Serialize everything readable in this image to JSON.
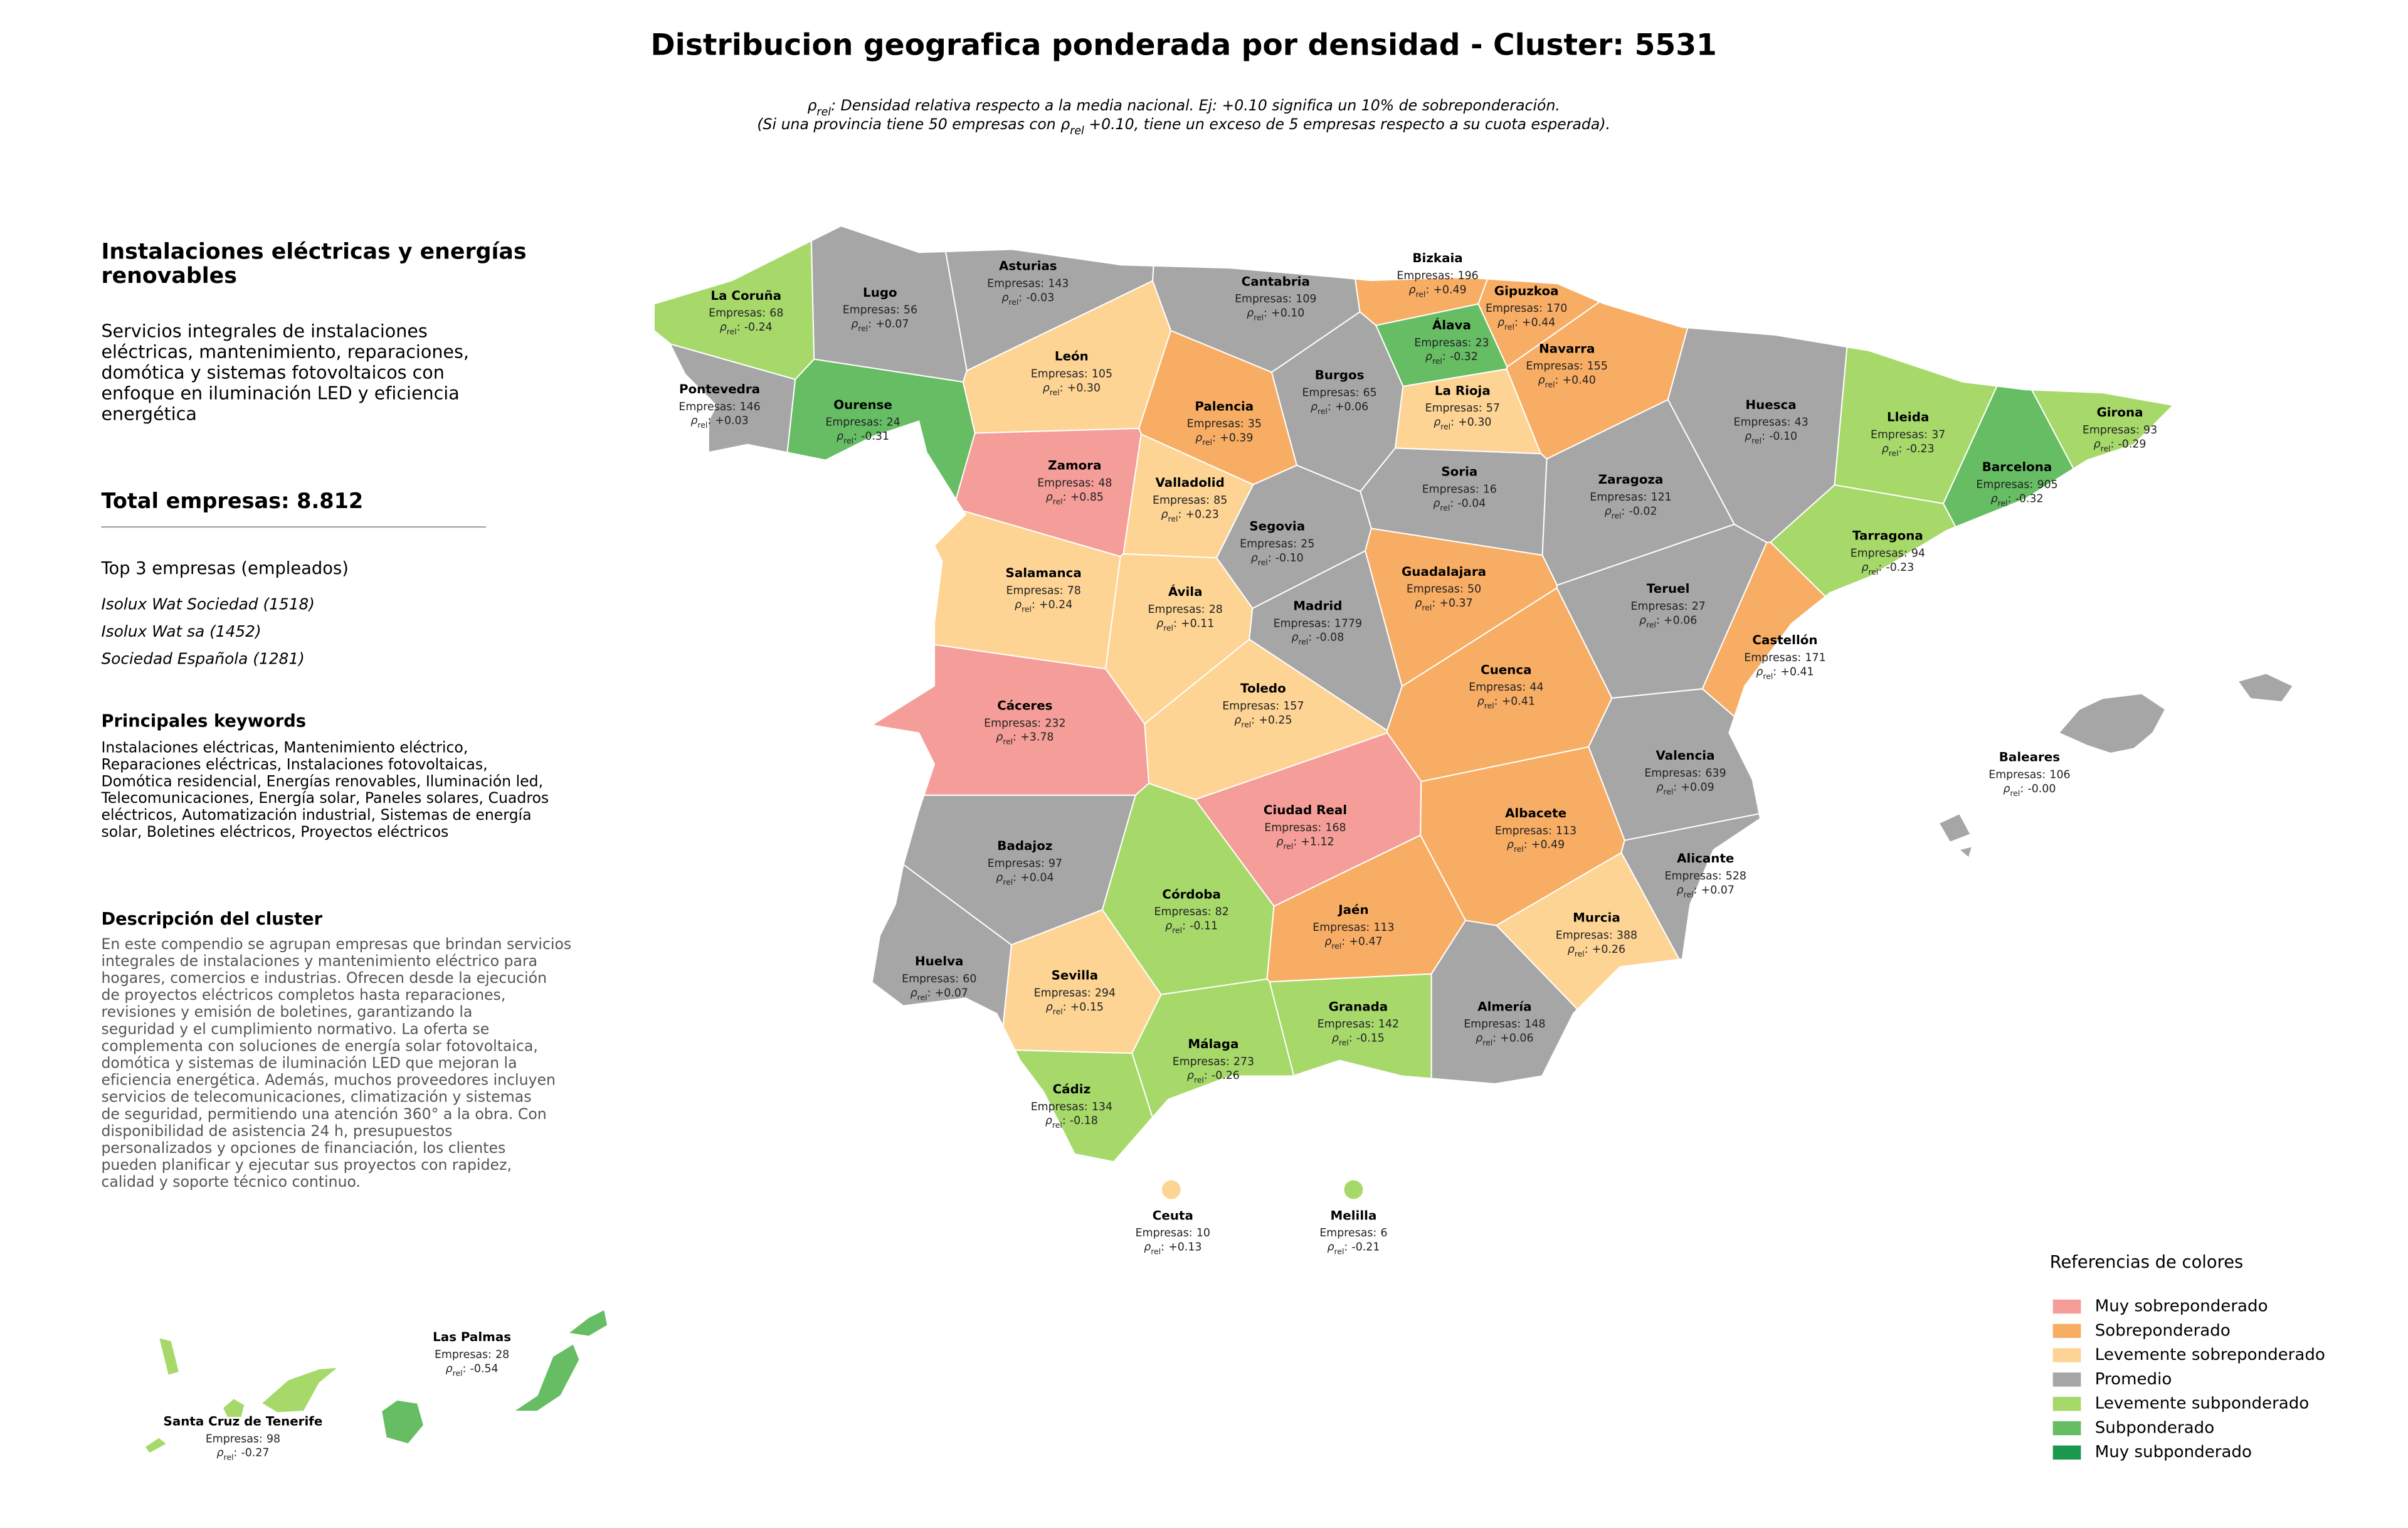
{
  "title": "Distribucion geografica ponderada por densidad - Cluster: 5531",
  "subtitle": [
    [
      {
        "text": "ρ"
      },
      {
        "text": "rel",
        "sub": true
      },
      {
        "text": ": Densidad relativa respecto a la media nacional. Ej: +0.10 significa un 10% de sobreponderación."
      }
    ],
    [
      {
        "text": "(Si una provincia tiene 50 empresas con "
      },
      {
        "text": "ρ"
      },
      {
        "text": "rel",
        "sub": true
      },
      {
        "text": " +0.10, tiene un exceso de 5 empresas respecto a su cuota esperada)."
      }
    ]
  ],
  "panel": {
    "heading": [
      "Instalaciones eléctricas y energías",
      "renovables"
    ],
    "description": [
      "Servicios integrales de instalaciones",
      "eléctricas, mantenimiento, reparaciones,",
      "domótica y sistemas fotovoltaicos con",
      "enfoque en iluminación LED y eficiencia",
      "energética"
    ],
    "total": "Total empresas: 8.812",
    "top_title": "Top 3 empresas (empleados)",
    "top": [
      "Isolux Wat Sociedad (1518)",
      "Isolux Wat sa (1452)",
      "Sociedad Española (1281)"
    ],
    "keywords_title": "Principales keywords",
    "keywords": [
      "Instalaciones eléctricas, Mantenimiento eléctrico,",
      "Reparaciones eléctricas, Instalaciones fotovoltaicas,",
      "Domótica residencial, Energías renovables, Iluminación led,",
      "Telecomunicaciones, Energía solar, Paneles solares, Cuadros",
      "eléctricos, Automatización industrial, Sistemas de energía",
      "solar, Boletines eléctricos, Proyectos eléctricos"
    ],
    "cluster_title": "Descripción del cluster",
    "cluster": [
      "En este compendio se agrupan empresas que brindan servicios",
      "integrales de instalaciones y mantenimiento eléctrico para",
      "hogares, comercios e industrias. Ofrecen desde la ejecución",
      "de proyectos eléctricos completos hasta reparaciones,",
      "revisiones y emisión de boletines, garantizando la",
      "seguridad y el cumplimiento normativo. La oferta se",
      "complementa con soluciones de energía solar fotovoltaica,",
      "domótica y sistemas de iluminación LED que mejoran la",
      "eficiencia energética. Además, muchos proveedores incluyen",
      "servicios de telecomunicaciones, climatización y sistemas",
      "de seguridad, permitiendo una atención 360° a la obra. Con",
      "disponibilidad de asistencia 24 h, presupuestos",
      "personalizados y opciones de financiación, los clientes",
      "pueden planificar y ejecutar sus proyectos con rapidez,",
      "calidad y soporte técnico continuo."
    ]
  },
  "labels": {
    "companies": "Empresas:",
    "rho_symbol": "ρ",
    "rho_subscript": "rel",
    "rho_suffix": ":"
  },
  "legend": {
    "title": "Referencias de colores",
    "items": [
      {
        "name": "Muy sobreponderado",
        "color": "#f59d98"
      },
      {
        "name": "Sobreponderado",
        "color": "#f8ad64"
      },
      {
        "name": "Levemente sobreponderado",
        "color": "#fdd494"
      },
      {
        "name": "Promedio",
        "color": "#a6a6a6"
      },
      {
        "name": "Levemente subponderado",
        "color": "#a6d96a"
      },
      {
        "name": "Subponderado",
        "color": "#66bd63"
      },
      {
        "name": "Muy subponderado",
        "color": "#1a9850"
      }
    ]
  },
  "provinces": [
    {
      "name": "La Coruña",
      "companies": 68,
      "rho": -0.24,
      "rho_label": "-0.24",
      "category": "Levemente subponderado"
    },
    {
      "name": "Lugo",
      "companies": 56,
      "rho": 0.07,
      "rho_label": "+0.07",
      "category": "Promedio"
    },
    {
      "name": "Asturias",
      "companies": 143,
      "rho": -0.03,
      "rho_label": "-0.03",
      "category": "Promedio"
    },
    {
      "name": "Cantabria",
      "companies": 109,
      "rho": 0.1,
      "rho_label": "+0.10",
      "category": "Promedio"
    },
    {
      "name": "Bizkaia",
      "companies": 196,
      "rho": 0.49,
      "rho_label": "+0.49",
      "category": "Sobreponderado"
    },
    {
      "name": "Gipuzkoa",
      "companies": 170,
      "rho": 0.44,
      "rho_label": "+0.44",
      "category": "Sobreponderado"
    },
    {
      "name": "Álava",
      "companies": 23,
      "rho": -0.32,
      "rho_label": "-0.32",
      "category": "Subponderado"
    },
    {
      "name": "Navarra",
      "companies": 155,
      "rho": 0.4,
      "rho_label": "+0.40",
      "category": "Sobreponderado"
    },
    {
      "name": "Pontevedra",
      "companies": 146,
      "rho": 0.03,
      "rho_label": "+0.03",
      "category": "Promedio"
    },
    {
      "name": "Ourense",
      "companies": 24,
      "rho": -0.31,
      "rho_label": "-0.31",
      "category": "Subponderado"
    },
    {
      "name": "León",
      "companies": 105,
      "rho": 0.3,
      "rho_label": "+0.30",
      "category": "Levemente sobreponderado"
    },
    {
      "name": "Palencia",
      "companies": 35,
      "rho": 0.39,
      "rho_label": "+0.39",
      "category": "Sobreponderado"
    },
    {
      "name": "Burgos",
      "companies": 65,
      "rho": 0.06,
      "rho_label": "+0.06",
      "category": "Promedio"
    },
    {
      "name": "La Rioja",
      "companies": 57,
      "rho": 0.3,
      "rho_label": "+0.30",
      "category": "Levemente sobreponderado"
    },
    {
      "name": "Huesca",
      "companies": 43,
      "rho": -0.1,
      "rho_label": "-0.10",
      "category": "Promedio"
    },
    {
      "name": "Lleida",
      "companies": 37,
      "rho": -0.23,
      "rho_label": "-0.23",
      "category": "Levemente subponderado"
    },
    {
      "name": "Girona",
      "companies": 93,
      "rho": -0.29,
      "rho_label": "-0.29",
      "category": "Levemente subponderado"
    },
    {
      "name": "Barcelona",
      "companies": 905,
      "rho": -0.32,
      "rho_label": "-0.32",
      "category": "Subponderado"
    },
    {
      "name": "Zamora",
      "companies": 48,
      "rho": 0.85,
      "rho_label": "+0.85",
      "category": "Muy sobreponderado"
    },
    {
      "name": "Valladolid",
      "companies": 85,
      "rho": 0.23,
      "rho_label": "+0.23",
      "category": "Levemente sobreponderado"
    },
    {
      "name": "Soria",
      "companies": 16,
      "rho": -0.04,
      "rho_label": "-0.04",
      "category": "Promedio"
    },
    {
      "name": "Zaragoza",
      "companies": 121,
      "rho": -0.02,
      "rho_label": "-0.02",
      "category": "Promedio"
    },
    {
      "name": "Segovia",
      "companies": 25,
      "rho": -0.1,
      "rho_label": "-0.10",
      "category": "Promedio"
    },
    {
      "name": "Tarragona",
      "companies": 94,
      "rho": -0.23,
      "rho_label": "-0.23",
      "category": "Levemente subponderado"
    },
    {
      "name": "Salamanca",
      "companies": 78,
      "rho": 0.24,
      "rho_label": "+0.24",
      "category": "Levemente sobreponderado"
    },
    {
      "name": "Guadalajara",
      "companies": 50,
      "rho": 0.37,
      "rho_label": "+0.37",
      "category": "Sobreponderado"
    },
    {
      "name": "Ávila",
      "companies": 28,
      "rho": 0.11,
      "rho_label": "+0.11",
      "category": "Levemente sobreponderado"
    },
    {
      "name": "Madrid",
      "companies": 1779,
      "rho": -0.08,
      "rho_label": "-0.08",
      "category": "Promedio"
    },
    {
      "name": "Teruel",
      "companies": 27,
      "rho": 0.06,
      "rho_label": "+0.06",
      "category": "Promedio"
    },
    {
      "name": "Castellón",
      "companies": 171,
      "rho": 0.41,
      "rho_label": "+0.41",
      "category": "Sobreponderado"
    },
    {
      "name": "Cuenca",
      "companies": 44,
      "rho": 0.41,
      "rho_label": "+0.41",
      "category": "Sobreponderado"
    },
    {
      "name": "Toledo",
      "companies": 157,
      "rho": 0.25,
      "rho_label": "+0.25",
      "category": "Levemente sobreponderado"
    },
    {
      "name": "Cáceres",
      "companies": 232,
      "rho": 3.78,
      "rho_label": "+3.78",
      "category": "Muy sobreponderado"
    },
    {
      "name": "Valencia",
      "companies": 639,
      "rho": 0.09,
      "rho_label": "+0.09",
      "category": "Promedio"
    },
    {
      "name": "Baleares",
      "companies": 106,
      "rho": 0,
      "rho_label": "-0.00",
      "category": "Promedio"
    },
    {
      "name": "Ciudad Real",
      "companies": 168,
      "rho": 1.12,
      "rho_label": "+1.12",
      "category": "Muy sobreponderado"
    },
    {
      "name": "Albacete",
      "companies": 113,
      "rho": 0.49,
      "rho_label": "+0.49",
      "category": "Sobreponderado"
    },
    {
      "name": "Badajoz",
      "companies": 97,
      "rho": 0.04,
      "rho_label": "+0.04",
      "category": "Promedio"
    },
    {
      "name": "Alicante",
      "companies": 528,
      "rho": 0.07,
      "rho_label": "+0.07",
      "category": "Promedio"
    },
    {
      "name": "Córdoba",
      "companies": 82,
      "rho": -0.11,
      "rho_label": "-0.11",
      "category": "Levemente subponderado"
    },
    {
      "name": "Jaén",
      "companies": 113,
      "rho": 0.47,
      "rho_label": "+0.47",
      "category": "Sobreponderado"
    },
    {
      "name": "Murcia",
      "companies": 388,
      "rho": 0.26,
      "rho_label": "+0.26",
      "category": "Levemente sobreponderado"
    },
    {
      "name": "Huelva",
      "companies": 60,
      "rho": 0.07,
      "rho_label": "+0.07",
      "category": "Promedio"
    },
    {
      "name": "Sevilla",
      "companies": 294,
      "rho": 0.15,
      "rho_label": "+0.15",
      "category": "Levemente sobreponderado"
    },
    {
      "name": "Granada",
      "companies": 142,
      "rho": -0.15,
      "rho_label": "-0.15",
      "category": "Levemente subponderado"
    },
    {
      "name": "Almería",
      "companies": 148,
      "rho": 0.06,
      "rho_label": "+0.06",
      "category": "Promedio"
    },
    {
      "name": "Málaga",
      "companies": 273,
      "rho": -0.26,
      "rho_label": "-0.26",
      "category": "Levemente subponderado"
    },
    {
      "name": "Cádiz",
      "companies": 134,
      "rho": -0.18,
      "rho_label": "-0.18",
      "category": "Levemente subponderado"
    },
    {
      "name": "Ceuta",
      "companies": 10,
      "rho": 0.13,
      "rho_label": "+0.13",
      "category": "Levemente sobreponderado"
    },
    {
      "name": "Melilla",
      "companies": 6,
      "rho": -0.21,
      "rho_label": "-0.21",
      "category": "Levemente subponderado"
    },
    {
      "name": "Las Palmas",
      "companies": 28,
      "rho": -0.54,
      "rho_label": "-0.54",
      "category": "Subponderado"
    },
    {
      "name": "Santa Cruz de Tenerife",
      "companies": 98,
      "rho": -0.27,
      "rho_label": "-0.27",
      "category": "Levemente subponderado"
    }
  ]
}
